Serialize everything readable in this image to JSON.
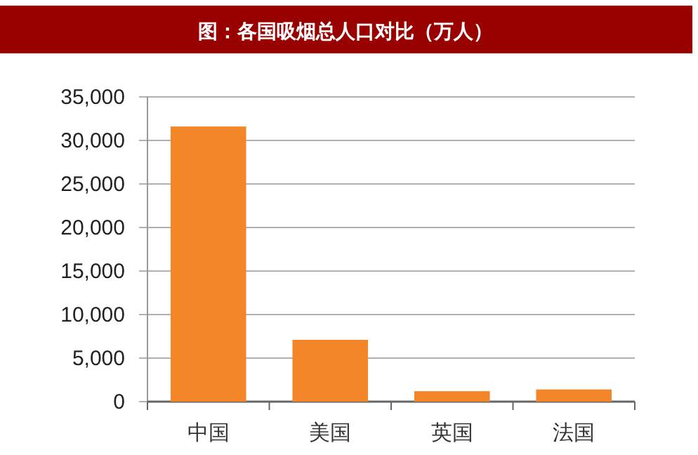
{
  "chart_data": {
    "type": "bar",
    "title": "图：各国吸烟总人口对比（万人）",
    "categories": [
      "中国",
      "美国",
      "英国",
      "法国"
    ],
    "values": [
      31600,
      7100,
      1200,
      1400
    ],
    "color": "#f4862a",
    "ylim": [
      0,
      35000
    ],
    "yticks": [
      {
        "value": 0,
        "label": "0"
      },
      {
        "value": 5000,
        "label": "5,000"
      },
      {
        "value": 10000,
        "label": "10,000"
      },
      {
        "value": 15000,
        "label": "15,000"
      },
      {
        "value": 20000,
        "label": "20,000"
      },
      {
        "value": 25000,
        "label": "25,000"
      },
      {
        "value": 30000,
        "label": "30,000"
      },
      {
        "value": 35000,
        "label": "35,000"
      }
    ],
    "grid": "y"
  }
}
